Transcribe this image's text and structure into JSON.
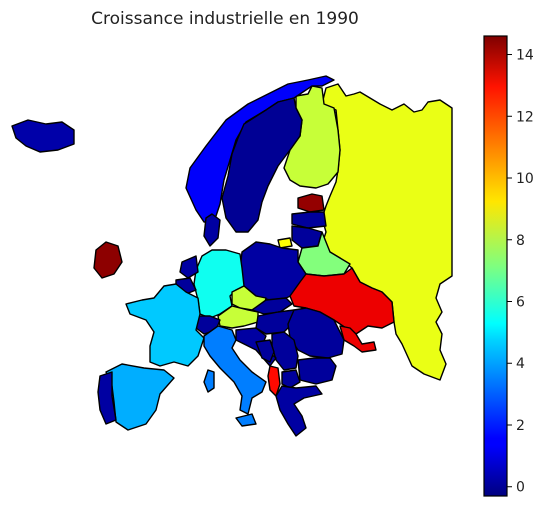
{
  "title": "Croissance industrielle en 1990",
  "colorbar": {
    "colormap": "jet",
    "min": -0.3,
    "max": 14.6,
    "ticks": [
      "0",
      "2",
      "4",
      "6",
      "8",
      "10",
      "12",
      "14"
    ]
  },
  "chart_data": {
    "type": "choropleth",
    "title": "Croissance industrielle en 1990",
    "value_range": [
      -0.3,
      14.6
    ],
    "regions": [
      {
        "name": "Russia",
        "value": 8.7
      },
      {
        "name": "Finland",
        "value": 8.2
      },
      {
        "name": "Sweden",
        "value": 0.0
      },
      {
        "name": "Norway",
        "value": 1.5
      },
      {
        "name": "Iceland",
        "value": 0.3
      },
      {
        "name": "Ireland",
        "value": 14.4
      },
      {
        "name": "Estonia",
        "value": 14.3
      },
      {
        "name": "Latvia",
        "value": 0.1
      },
      {
        "name": "Lithuania",
        "value": 0.1
      },
      {
        "name": "Kaliningrad",
        "value": 9.0
      },
      {
        "name": "Belarus",
        "value": 7.2
      },
      {
        "name": "Ukraine",
        "value": 13.0
      },
      {
        "name": "Moldova",
        "value": 13.0
      },
      {
        "name": "Poland",
        "value": 0.2
      },
      {
        "name": "Germany",
        "value": 5.5
      },
      {
        "name": "Czechia",
        "value": 8.2
      },
      {
        "name": "Austria",
        "value": 8.2
      },
      {
        "name": "Slovakia",
        "value": 0.1
      },
      {
        "name": "Hungary",
        "value": 0.1
      },
      {
        "name": "Romania",
        "value": 0.1
      },
      {
        "name": "Bulgaria",
        "value": 0.1
      },
      {
        "name": "Serbia",
        "value": 0.1
      },
      {
        "name": "Croatia",
        "value": 0.2
      },
      {
        "name": "Bosnia and Herzegovina",
        "value": 0.1
      },
      {
        "name": "North Macedonia",
        "value": 0.1
      },
      {
        "name": "Albania",
        "value": 12.6
      },
      {
        "name": "Greece",
        "value": 0.2
      },
      {
        "name": "Denmark",
        "value": 0.2
      },
      {
        "name": "Netherlands",
        "value": 0.2
      },
      {
        "name": "Belgium",
        "value": 0.1
      },
      {
        "name": "Switzerland",
        "value": 0.1
      },
      {
        "name": "France",
        "value": 4.5
      },
      {
        "name": "Italy",
        "value": 3.4
      },
      {
        "name": "Spain",
        "value": 4.1
      },
      {
        "name": "Portugal",
        "value": 0.2
      }
    ]
  }
}
